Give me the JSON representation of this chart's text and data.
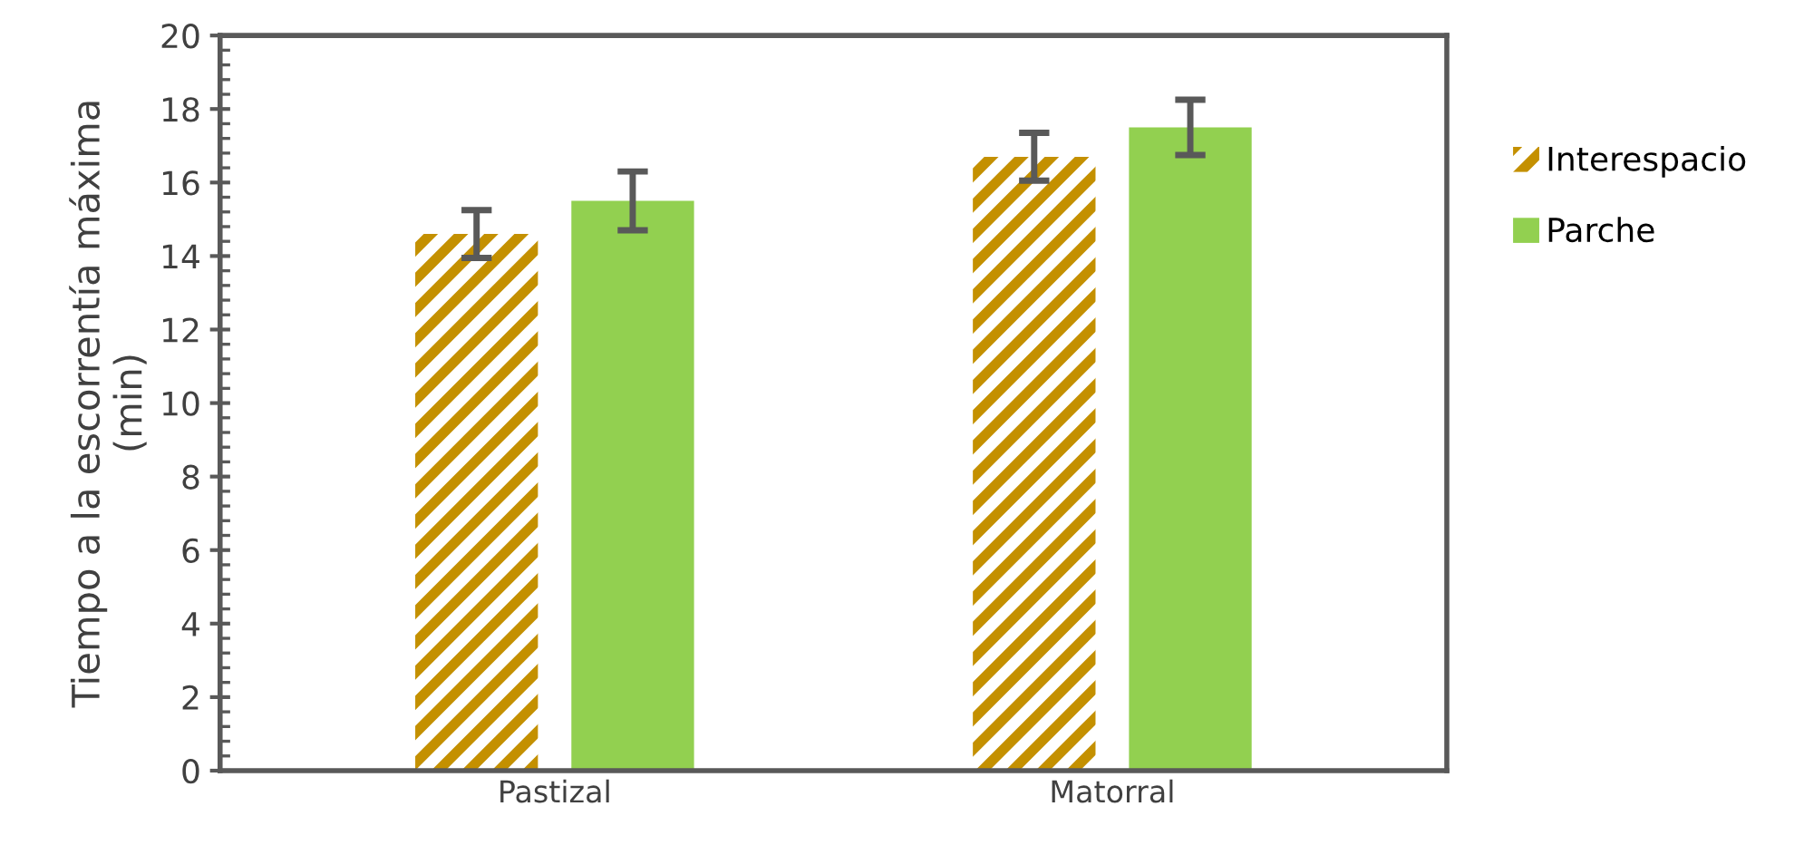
{
  "chart_data": {
    "type": "bar",
    "ylabel": "Tiempo a la escorrentía máxima\n(min)",
    "categories": [
      "Pastizal",
      "Matorral"
    ],
    "series": [
      {
        "name": "Interespacio",
        "color": "#c49000",
        "values": [
          14.6,
          16.7
        ],
        "errors": [
          0.65,
          0.65
        ]
      },
      {
        "name": "Parche",
        "color": "#92d050",
        "values": [
          15.5,
          17.5
        ],
        "errors": [
          0.8,
          0.75
        ]
      }
    ],
    "ylim": [
      0,
      20
    ],
    "yticks": [
      0,
      2,
      4,
      6,
      8,
      10,
      12,
      14,
      16,
      18,
      20
    ],
    "grid": false,
    "legend": "right"
  }
}
